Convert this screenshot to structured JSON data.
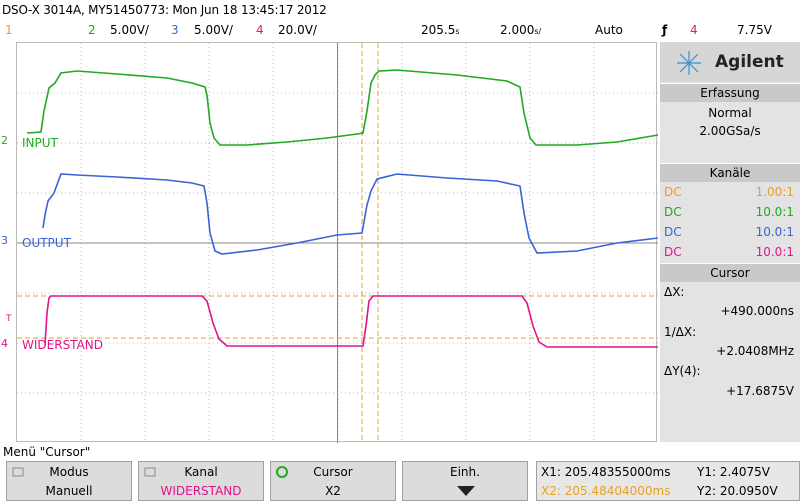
{
  "header": {
    "title": "DSO-X 3014A, MY51450773: Mon Jun 18 13:45:17 2012",
    "ch1_num": "1",
    "ch2_num": "2",
    "ch2_scale": "5.00V/",
    "ch3_num": "3",
    "ch3_scale": "5.00V/",
    "ch4_num": "4",
    "ch4_scale": "20.0V/",
    "time_ref": "205.5",
    "time_ref_unit": "s",
    "time_scale": "2.000",
    "time_scale_unit": "s/",
    "trigger_mode": "Auto",
    "trigger_icon": "trigger-edge-icon",
    "trigger_channel": "4",
    "trigger_level": "7.75V"
  },
  "colors": {
    "ch1": "#e8a020",
    "ch2": "#22a822",
    "ch3": "#3b62d6",
    "ch4": "#e0148a",
    "grid": "#909090",
    "cursor": "#e8a020"
  },
  "traces": {
    "input_label": "INPUT",
    "output_label": "OUTPUT",
    "widerstand_label": "WIDERSTAND",
    "input_marker": "2",
    "output_marker": "3",
    "widerstand_marker": "4"
  },
  "panel": {
    "brand": "Agilent",
    "acquisition_title": "Erfassung",
    "acquisition_mode": "Normal",
    "sample_rate": "2.00GSa/s",
    "channels_title": "Kanäle",
    "channels": [
      {
        "coupling": "DC",
        "ratio": "1.00:1"
      },
      {
        "coupling": "DC",
        "ratio": "10.0:1"
      },
      {
        "coupling": "DC",
        "ratio": "10.0:1"
      },
      {
        "coupling": "DC",
        "ratio": "10.0:1"
      }
    ],
    "cursor_title": "Cursor",
    "dx_label": "ΔX:",
    "dx_value": "+490.000ns",
    "inv_dx_label": "1/ΔX:",
    "inv_dx_value": "+2.0408MHz",
    "dy_label": "ΔY(4):",
    "dy_value": "+17.6875V"
  },
  "footer": {
    "menu_label": "Menü \"Cursor\"",
    "softkeys": [
      {
        "top": "Modus",
        "bottom": "Manuell"
      },
      {
        "top": "Kanal",
        "bottom": "WIDERSTAND"
      },
      {
        "top": "Cursor",
        "bottom": "X2"
      },
      {
        "top": "Einh.",
        "bottom": ""
      }
    ],
    "x1": "X1: 205.48355000ms",
    "x2": "X2: 205.48404000ms",
    "y1": "Y1: 2.4075V",
    "y2": "Y2: 20.0950V"
  }
}
